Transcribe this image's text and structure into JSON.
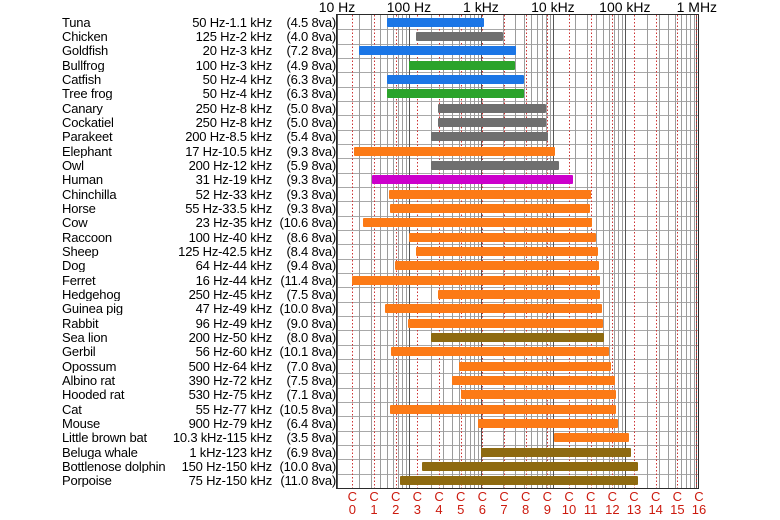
{
  "axes": {
    "top_ticks": [
      {
        "label": "10 Hz",
        "hz": 10
      },
      {
        "label": "100 Hz",
        "hz": 100
      },
      {
        "label": "1 kHz",
        "hz": 1000
      },
      {
        "label": "10 kHz",
        "hz": 10000
      },
      {
        "label": "100 kHz",
        "hz": 100000
      },
      {
        "label": "1 MHz",
        "hz": 1000000
      }
    ],
    "bottom_note_letter": "C",
    "bottom_note_numbers": [
      0,
      1,
      2,
      3,
      4,
      5,
      6,
      7,
      8,
      9,
      10,
      11,
      12,
      13,
      14,
      15,
      16
    ],
    "note_base_hz": 16.352
  },
  "colors": {
    "blue": "#1b76e6",
    "gray": "#6f6f6f",
    "green": "#2ba32b",
    "orange": "#fc7a16",
    "magenta": "#cc00cc",
    "olive": "#8e6a10",
    "grid_minor": "#9c9c9c",
    "grid_major": "#565656",
    "row_line": "#a8a8a8",
    "border": "#2a2a2a",
    "note_line": "#cc3333",
    "note_text": "#cc1a0e",
    "axis_text": "#000000"
  },
  "chart_data": {
    "type": "bar",
    "orientation": "horizontal-range",
    "x_scale": "log",
    "x_unit": "Hz",
    "x_min_hz": 10,
    "x_max_hz": 1071514,
    "grid": true,
    "animals": [
      {
        "name": "Tuna",
        "range": "50 Hz-1.1 kHz",
        "octaves": "(4.5 8va)",
        "min_hz": 50,
        "max_hz": 1100,
        "color": "blue"
      },
      {
        "name": "Chicken",
        "range": "125 Hz-2 kHz",
        "octaves": "(4.0 8va)",
        "min_hz": 125,
        "max_hz": 2000,
        "color": "gray"
      },
      {
        "name": "Goldfish",
        "range": "20 Hz-3 kHz",
        "octaves": "(7.2 8va)",
        "min_hz": 20,
        "max_hz": 3000,
        "color": "blue"
      },
      {
        "name": "Bullfrog",
        "range": "100 Hz-3 kHz",
        "octaves": "(4.9 8va)",
        "min_hz": 100,
        "max_hz": 3000,
        "color": "green"
      },
      {
        "name": "Catfish",
        "range": "50 Hz-4 kHz",
        "octaves": "(6.3 8va)",
        "min_hz": 50,
        "max_hz": 4000,
        "color": "blue"
      },
      {
        "name": "Tree frog",
        "range": "50 Hz-4 kHz",
        "octaves": "(6.3 8va)",
        "min_hz": 50,
        "max_hz": 4000,
        "color": "green"
      },
      {
        "name": "Canary",
        "range": "250 Hz-8 kHz",
        "octaves": "(5.0 8va)",
        "min_hz": 250,
        "max_hz": 8000,
        "color": "gray"
      },
      {
        "name": "Cockatiel",
        "range": "250 Hz-8 kHz",
        "octaves": "(5.0 8va)",
        "min_hz": 250,
        "max_hz": 8000,
        "color": "gray"
      },
      {
        "name": "Parakeet",
        "range": "200 Hz-8.5 kHz",
        "octaves": "(5.4 8va)",
        "min_hz": 200,
        "max_hz": 8500,
        "color": "gray"
      },
      {
        "name": "Elephant",
        "range": "17 Hz-10.5 kHz",
        "octaves": "(9.3 8va)",
        "min_hz": 17,
        "max_hz": 10500,
        "color": "orange"
      },
      {
        "name": "Owl",
        "range": "200 Hz-12 kHz",
        "octaves": "(5.9 8va)",
        "min_hz": 200,
        "max_hz": 12000,
        "color": "gray"
      },
      {
        "name": "Human",
        "range": "31 Hz-19 kHz",
        "octaves": "(9.3 8va)",
        "min_hz": 31,
        "max_hz": 19000,
        "color": "magenta"
      },
      {
        "name": "Chinchilla",
        "range": "52 Hz-33 kHz",
        "octaves": "(9.3 8va)",
        "min_hz": 52,
        "max_hz": 33000,
        "color": "orange"
      },
      {
        "name": "Horse",
        "range": "55 Hz-33.5 kHz",
        "octaves": "(9.3 8va)",
        "min_hz": 55,
        "max_hz": 33500,
        "color": "orange"
      },
      {
        "name": "Cow",
        "range": "23 Hz-35 kHz",
        "octaves": "(10.6 8va)",
        "min_hz": 23,
        "max_hz": 35000,
        "color": "orange"
      },
      {
        "name": "Raccoon",
        "range": "100 Hz-40 kHz",
        "octaves": "(8.6 8va)",
        "min_hz": 100,
        "max_hz": 40000,
        "color": "orange"
      },
      {
        "name": "Sheep",
        "range": "125 Hz-42.5 kHz",
        "octaves": "(8.4 8va)",
        "min_hz": 125,
        "max_hz": 42500,
        "color": "orange"
      },
      {
        "name": "Dog",
        "range": "64 Hz-44 kHz",
        "octaves": "(9.4 8va)",
        "min_hz": 64,
        "max_hz": 44000,
        "color": "orange"
      },
      {
        "name": "Ferret",
        "range": "16 Hz-44 kHz",
        "octaves": "(11.4 8va)",
        "min_hz": 16,
        "max_hz": 44000,
        "color": "orange"
      },
      {
        "name": "Hedgehog",
        "range": "250 Hz-45 kHz",
        "octaves": "(7.5 8va)",
        "min_hz": 250,
        "max_hz": 45000,
        "color": "orange"
      },
      {
        "name": "Guinea pig",
        "range": "47 Hz-49 kHz",
        "octaves": "(10.0 8va)",
        "min_hz": 47,
        "max_hz": 49000,
        "color": "orange"
      },
      {
        "name": "Rabbit",
        "range": "96 Hz-49 kHz",
        "octaves": "(9.0 8va)",
        "min_hz": 96,
        "max_hz": 49000,
        "color": "orange"
      },
      {
        "name": "Sea lion",
        "range": "200 Hz-50 kHz",
        "octaves": "(8.0 8va)",
        "min_hz": 200,
        "max_hz": 50000,
        "color": "olive"
      },
      {
        "name": "Gerbil",
        "range": "56 Hz-60 kHz",
        "octaves": "(10.1 8va)",
        "min_hz": 56,
        "max_hz": 60000,
        "color": "orange"
      },
      {
        "name": "Opossum",
        "range": "500 Hz-64 kHz",
        "octaves": "(7.0 8va)",
        "min_hz": 500,
        "max_hz": 64000,
        "color": "orange"
      },
      {
        "name": "Albino rat",
        "range": "390 Hz-72 kHz",
        "octaves": "(7.5 8va)",
        "min_hz": 390,
        "max_hz": 72000,
        "color": "orange"
      },
      {
        "name": "Hooded rat",
        "range": "530 Hz-75 kHz",
        "octaves": "(7.1 8va)",
        "min_hz": 530,
        "max_hz": 75000,
        "color": "orange"
      },
      {
        "name": "Cat",
        "range": "55 Hz-77 kHz",
        "octaves": "(10.5 8va)",
        "min_hz": 55,
        "max_hz": 77000,
        "color": "orange"
      },
      {
        "name": "Mouse",
        "range": "900 Hz-79 kHz",
        "octaves": "(6.4 8va)",
        "min_hz": 900,
        "max_hz": 79000,
        "color": "orange"
      },
      {
        "name": "Little brown bat",
        "range": "10.3 kHz-115 kHz",
        "octaves": "(3.5 8va)",
        "min_hz": 10300,
        "max_hz": 115000,
        "color": "orange"
      },
      {
        "name": "Beluga whale",
        "range": "1 kHz-123 kHz",
        "octaves": "(6.9 8va)",
        "min_hz": 1000,
        "max_hz": 123000,
        "color": "olive"
      },
      {
        "name": "Bottlenose dolphin",
        "range": "150 Hz-150 kHz",
        "octaves": "(10.0 8va)",
        "min_hz": 150,
        "max_hz": 150000,
        "color": "olive"
      },
      {
        "name": "Porpoise",
        "range": "75 Hz-150 kHz",
        "octaves": "(11.0 8va)",
        "min_hz": 75,
        "max_hz": 150000,
        "color": "olive"
      }
    ]
  }
}
